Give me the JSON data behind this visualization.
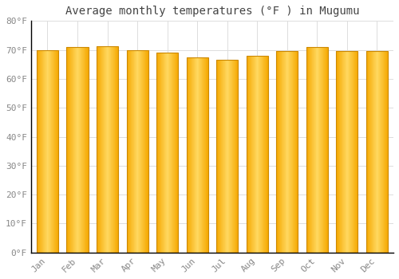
{
  "title": "Average monthly temperatures (°F ) in Mugumu",
  "months": [
    "Jan",
    "Feb",
    "Mar",
    "Apr",
    "May",
    "Jun",
    "Jul",
    "Aug",
    "Sep",
    "Oct",
    "Nov",
    "Dec"
  ],
  "values": [
    70.0,
    71.0,
    71.2,
    70.0,
    69.0,
    67.5,
    66.5,
    68.0,
    69.5,
    71.0,
    69.5,
    69.5
  ],
  "ylim": [
    0,
    80
  ],
  "yticks": [
    0,
    10,
    20,
    30,
    40,
    50,
    60,
    70,
    80
  ],
  "bar_color_center": "#FFD060",
  "bar_color_edge": "#F5A800",
  "bar_outline_color": "#CC8800",
  "background_color": "#FFFFFF",
  "grid_color": "#DDDDDD",
  "title_fontsize": 10,
  "tick_fontsize": 8,
  "font_family": "monospace"
}
